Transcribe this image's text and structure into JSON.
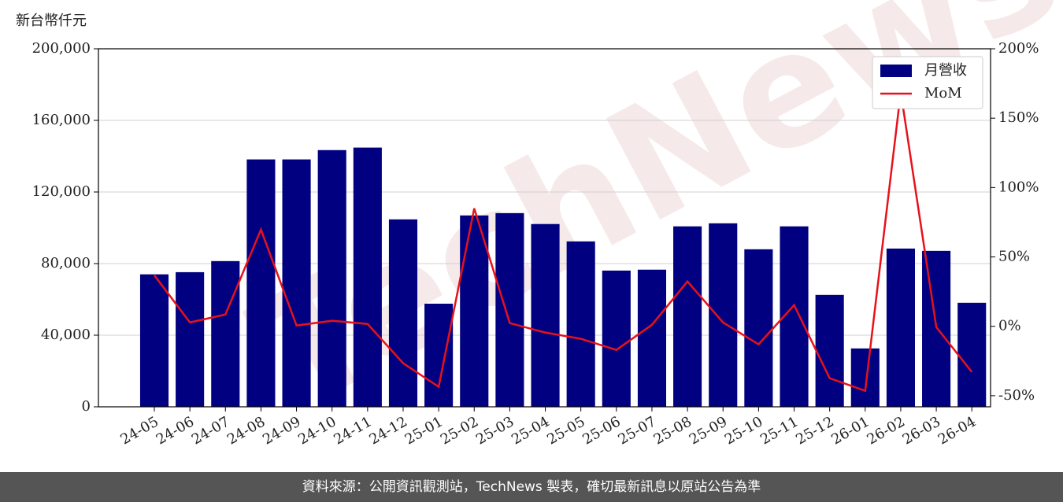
{
  "chart_data": {
    "type": "bar",
    "ylabel": "新台幣仟元",
    "watermark": "TechNews",
    "footer": "資料來源：公開資訊觀測站，TechNews 製表，確切最新訊息以原站公告為準",
    "categories": [
      "24-05",
      "24-06",
      "24-07",
      "24-08",
      "24-09",
      "24-10",
      "24-11",
      "24-12",
      "25-01",
      "25-02",
      "25-03",
      "25-04",
      "25-05",
      "25-06",
      "25-07",
      "25-08",
      "25-09",
      "25-10",
      "25-11",
      "25-12",
      "26-01",
      "26-02",
      "26-03",
      "26-04"
    ],
    "series": [
      {
        "name": "月營收",
        "type": "bar",
        "color": "#000080",
        "values": [
          74000,
          75200,
          81400,
          138200,
          138200,
          143400,
          144800,
          104700,
          57600,
          106900,
          108200,
          102100,
          92400,
          76100,
          76600,
          100800,
          102500,
          88000,
          100800,
          62500,
          32600,
          88400,
          87100,
          58100
        ]
      },
      {
        "name": "MoM",
        "type": "line",
        "axis": "y2",
        "color": "#e8111a",
        "values": [
          36.8,
          2.8,
          8.5,
          69.7,
          0.6,
          4,
          1.7,
          -26.6,
          -43.6,
          85,
          2.3,
          -4.5,
          -9,
          -17,
          1.1,
          32.3,
          2.8,
          -13,
          15.3,
          -37.4,
          -46.5,
          168.8,
          -0.6,
          -32.9
        ]
      }
    ],
    "ylim": [
      0,
      200000
    ],
    "yticks": [
      0,
      {
        "value": 40000,
        "label": "40,000"
      },
      {
        "value": 80000,
        "label": "80,000"
      },
      {
        "value": 120000,
        "label": "120,000"
      },
      {
        "value": 160000,
        "label": "160,000"
      },
      {
        "value": 200000,
        "label": "200,000"
      }
    ],
    "y2lim": [
      -58,
      200
    ],
    "y2ticks": [
      {
        "value": -50,
        "label": "-50%"
      },
      {
        "value": 0,
        "label": "0%"
      },
      {
        "value": 50,
        "label": "50%"
      },
      {
        "value": 100,
        "label": "100%"
      },
      {
        "value": 150,
        "label": "150%"
      },
      {
        "value": 200,
        "label": "200%"
      }
    ],
    "grid": true,
    "legend": "upper right"
  }
}
